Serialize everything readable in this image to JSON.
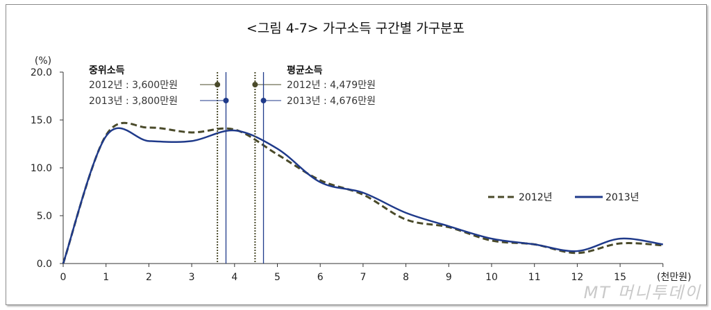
{
  "chart_data": {
    "type": "line",
    "title": "<그림 4-7> 가구소득 구간별 가구분포",
    "ylabel": "(%)",
    "xlabel": "(천만원)",
    "ylim": [
      0,
      20
    ],
    "yticks": [
      "0.0",
      "5.0",
      "10.0",
      "15.0",
      "20.0"
    ],
    "categories": [
      "0",
      "1",
      "2",
      "3",
      "4",
      "5",
      "6",
      "7",
      "8",
      "9",
      "10",
      "11",
      "12",
      "15",
      ""
    ],
    "grid": false,
    "legend": "right-middle",
    "series": [
      {
        "name": "2012년",
        "style": "dashed",
        "color": "#4a4a2a",
        "values": [
          0,
          13.4,
          14.2,
          13.7,
          14.0,
          11.4,
          8.7,
          7.2,
          4.6,
          3.8,
          2.4,
          2.0,
          1.1,
          2.1,
          1.9
        ]
      },
      {
        "name": "2013년",
        "style": "solid",
        "color": "#1f3a8a",
        "values": [
          0,
          13.3,
          12.8,
          12.8,
          13.9,
          12.0,
          8.5,
          7.4,
          5.3,
          3.9,
          2.6,
          2.0,
          1.3,
          2.6,
          2.0
        ]
      }
    ],
    "annotations": {
      "median": {
        "heading": "중위소득",
        "items": [
          {
            "label": "2012년 : 3,600만원",
            "x": 3.6,
            "series": "2012년"
          },
          {
            "label": "2013년 : 3,800만원",
            "x": 3.8,
            "series": "2013년"
          }
        ]
      },
      "mean": {
        "heading": "평균소득",
        "items": [
          {
            "label": "2012년 : 4,479만원",
            "x": 4.479,
            "series": "2012년"
          },
          {
            "label": "2013년 : 4,676만원",
            "x": 4.676,
            "series": "2013년"
          }
        ]
      }
    }
  },
  "watermark": "MT 머니투데이"
}
